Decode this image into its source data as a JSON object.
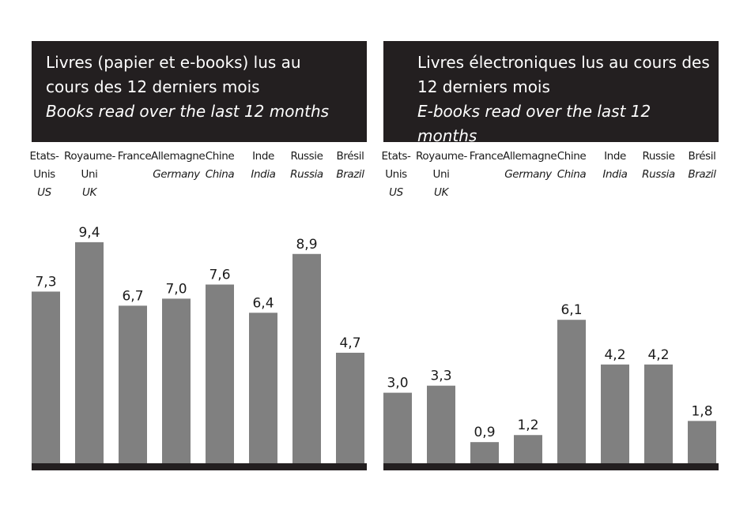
{
  "chart_data": [
    {
      "type": "bar",
      "title": "Livres (papier et e-books) lus au\ncours des 12 derniers mois",
      "subtitle": "Books read over the last 12 months",
      "categories": [
        {
          "fr": "Etats-\nUnis",
          "en": "US"
        },
        {
          "fr": "Royaume-\nUni",
          "en": "UK"
        },
        {
          "fr": "France",
          "en": ""
        },
        {
          "fr": "Allemagne",
          "en": "Germany"
        },
        {
          "fr": "Chine",
          "en": "China"
        },
        {
          "fr": "Inde",
          "en": "India"
        },
        {
          "fr": "Russie",
          "en": "Russia"
        },
        {
          "fr": "Brésil",
          "en": "Brazil"
        }
      ],
      "values": [
        7.3,
        9.4,
        6.7,
        7.0,
        7.6,
        6.4,
        8.9,
        4.7
      ],
      "value_labels": [
        "7,3",
        "9,4",
        "6,7",
        "7,0",
        "7,6",
        "6,4",
        "8,9",
        "4,7"
      ],
      "ylim": [
        0,
        11.3
      ],
      "grid": false,
      "bar_color": "#808080"
    },
    {
      "type": "bar",
      "title": "Livres électroniques lus au cours des\n12 derniers mois",
      "subtitle": "E-books read over the last 12 months",
      "categories": [
        {
          "fr": "Etats-\nUnis",
          "en": "US"
        },
        {
          "fr": "Royaume-\nUni",
          "en": "UK"
        },
        {
          "fr": "France",
          "en": ""
        },
        {
          "fr": "Allemagne",
          "en": "Germany"
        },
        {
          "fr": "Chine",
          "en": "China"
        },
        {
          "fr": "Inde",
          "en": "India"
        },
        {
          "fr": "Russie",
          "en": "Russia"
        },
        {
          "fr": "Brésil",
          "en": "Brazil"
        }
      ],
      "values": [
        3.0,
        3.3,
        0.9,
        1.2,
        6.1,
        4.2,
        4.2,
        1.8
      ],
      "value_labels": [
        "3,0",
        "3,3",
        "0,9",
        "1,2",
        "6,1",
        "4,2",
        "4,2",
        "1,8"
      ],
      "ylim": [
        0,
        11.3
      ],
      "grid": false,
      "bar_color": "#808080"
    }
  ]
}
